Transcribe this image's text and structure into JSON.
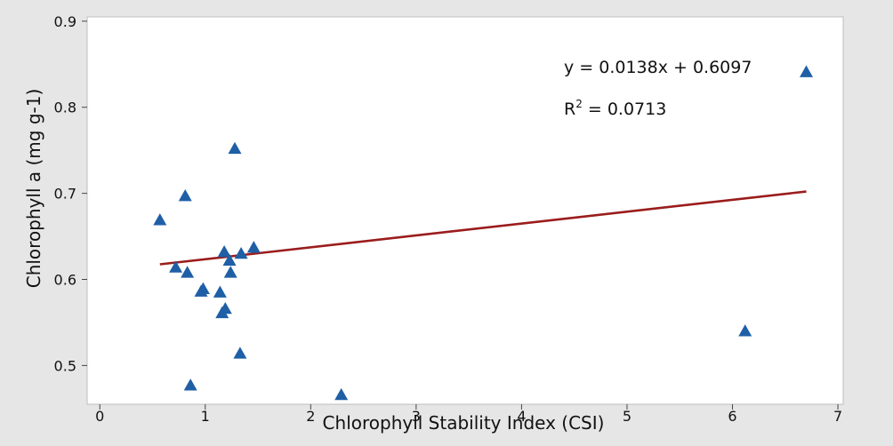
{
  "chart_data": {
    "type": "scatter",
    "title": "",
    "xlabel": "Chlorophyll Stability Index (CSI)",
    "ylabel": "Chlorophyll a (mg g-1)",
    "xlim": [
      -0.12,
      7.05
    ],
    "ylim": [
      0.455,
      0.905
    ],
    "xticks": [
      0,
      1,
      2,
      3,
      4,
      5,
      6,
      7
    ],
    "yticks": [
      0.5,
      0.6,
      0.7,
      0.8,
      0.9
    ],
    "xtick_labels": [
      "0",
      "1",
      "2",
      "3",
      "4",
      "5",
      "6",
      "7"
    ],
    "ytick_labels": [
      "0.5",
      "0.6",
      "0.7",
      "0.8",
      "0.9"
    ],
    "grid": false,
    "marker": "triangle",
    "colors": {
      "points": "#1f5fa6",
      "trendline": "#9b1c1c",
      "background": "#ffffff",
      "frame": "#bdbdbd"
    },
    "points": [
      {
        "x": 0.57,
        "y": 0.669
      },
      {
        "x": 0.72,
        "y": 0.614
      },
      {
        "x": 0.81,
        "y": 0.697
      },
      {
        "x": 0.83,
        "y": 0.608
      },
      {
        "x": 0.86,
        "y": 0.477
      },
      {
        "x": 0.96,
        "y": 0.586
      },
      {
        "x": 0.98,
        "y": 0.589
      },
      {
        "x": 1.14,
        "y": 0.585
      },
      {
        "x": 1.16,
        "y": 0.561
      },
      {
        "x": 1.18,
        "y": 0.632
      },
      {
        "x": 1.19,
        "y": 0.566
      },
      {
        "x": 1.23,
        "y": 0.622
      },
      {
        "x": 1.24,
        "y": 0.608
      },
      {
        "x": 1.28,
        "y": 0.752
      },
      {
        "x": 1.33,
        "y": 0.514
      },
      {
        "x": 1.34,
        "y": 0.63
      },
      {
        "x": 1.46,
        "y": 0.637
      },
      {
        "x": 2.29,
        "y": 0.466
      },
      {
        "x": 6.12,
        "y": 0.54
      },
      {
        "x": 6.7,
        "y": 0.841
      }
    ],
    "trendline": {
      "x_range": [
        0.57,
        6.7
      ],
      "slope": 0.0138,
      "intercept": 0.6097
    },
    "annotations": {
      "equation": "y = 0.0138x + 0.6097",
      "r2_prefix": "R",
      "r2_sup": "2",
      "r2_suffix": " = 0.0713"
    }
  }
}
